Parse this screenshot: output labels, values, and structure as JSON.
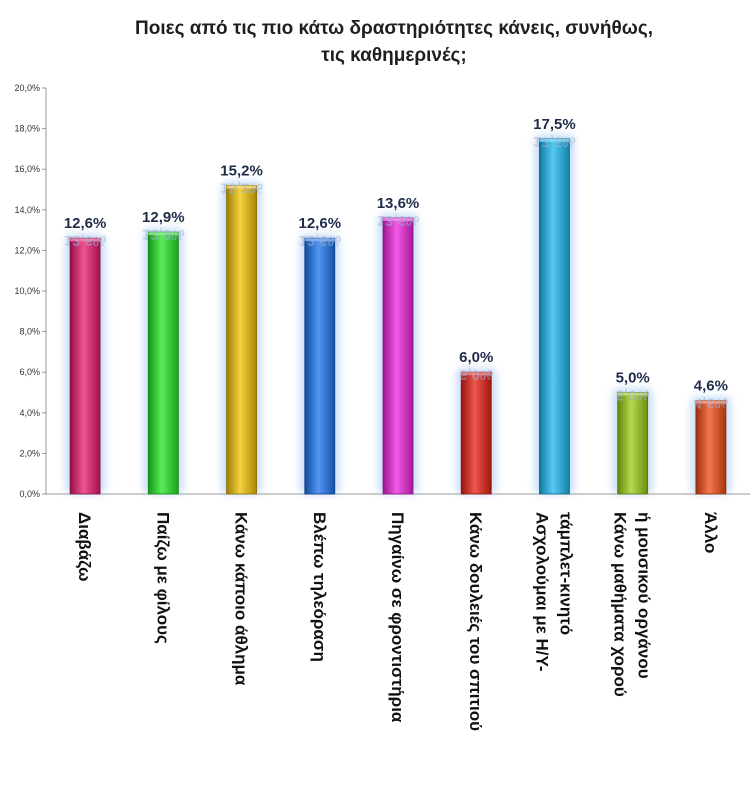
{
  "chart_data": {
    "type": "bar",
    "title_lines": [
      "Ποιες από τις πιο κάτω δραστηριότητες κάνεις, συνήθως,",
      "τις καθημερινές;"
    ],
    "categories": [
      [
        "Διαβάζω"
      ],
      [
        "Παίζω με φίλους"
      ],
      [
        "Κάνω κάποιο άθλημα"
      ],
      [
        "Βλέπω τηλεόραση"
      ],
      [
        "Πηγαίνω σε φροντιστήρια"
      ],
      [
        "Κάνω δουλειές του σπιτιού"
      ],
      [
        "Ασχολούμαι με Η/Υ-",
        "τάμπλετ-κινητό"
      ],
      [
        "Κάνω μαθήματα χορού",
        "ή μουσικού οργάνου"
      ],
      [
        "Άλλο"
      ]
    ],
    "values": [
      12.6,
      12.9,
      15.2,
      12.6,
      13.6,
      6.0,
      17.5,
      5.0,
      4.6
    ],
    "data_labels": [
      "12,6%",
      "12,9%",
      "15,2%",
      "12,6%",
      "13,6%",
      "6,0%",
      "17,5%",
      "5,0%",
      "4,6%"
    ],
    "colors": [
      "#e8196c",
      "#22e622",
      "#f2c200",
      "#1a73f0",
      "#ee22dd",
      "#e81e14",
      "#1bb8f0",
      "#9acd14",
      "#f24a12"
    ],
    "ylim": [
      0,
      20
    ],
    "yticks": [
      "0,0%",
      "2,0%",
      "4,0%",
      "6,0%",
      "8,0%",
      "10,0%",
      "12,0%",
      "14,0%",
      "16,0%",
      "18,0%",
      "20,0%"
    ],
    "grid": false,
    "legend": "none"
  }
}
